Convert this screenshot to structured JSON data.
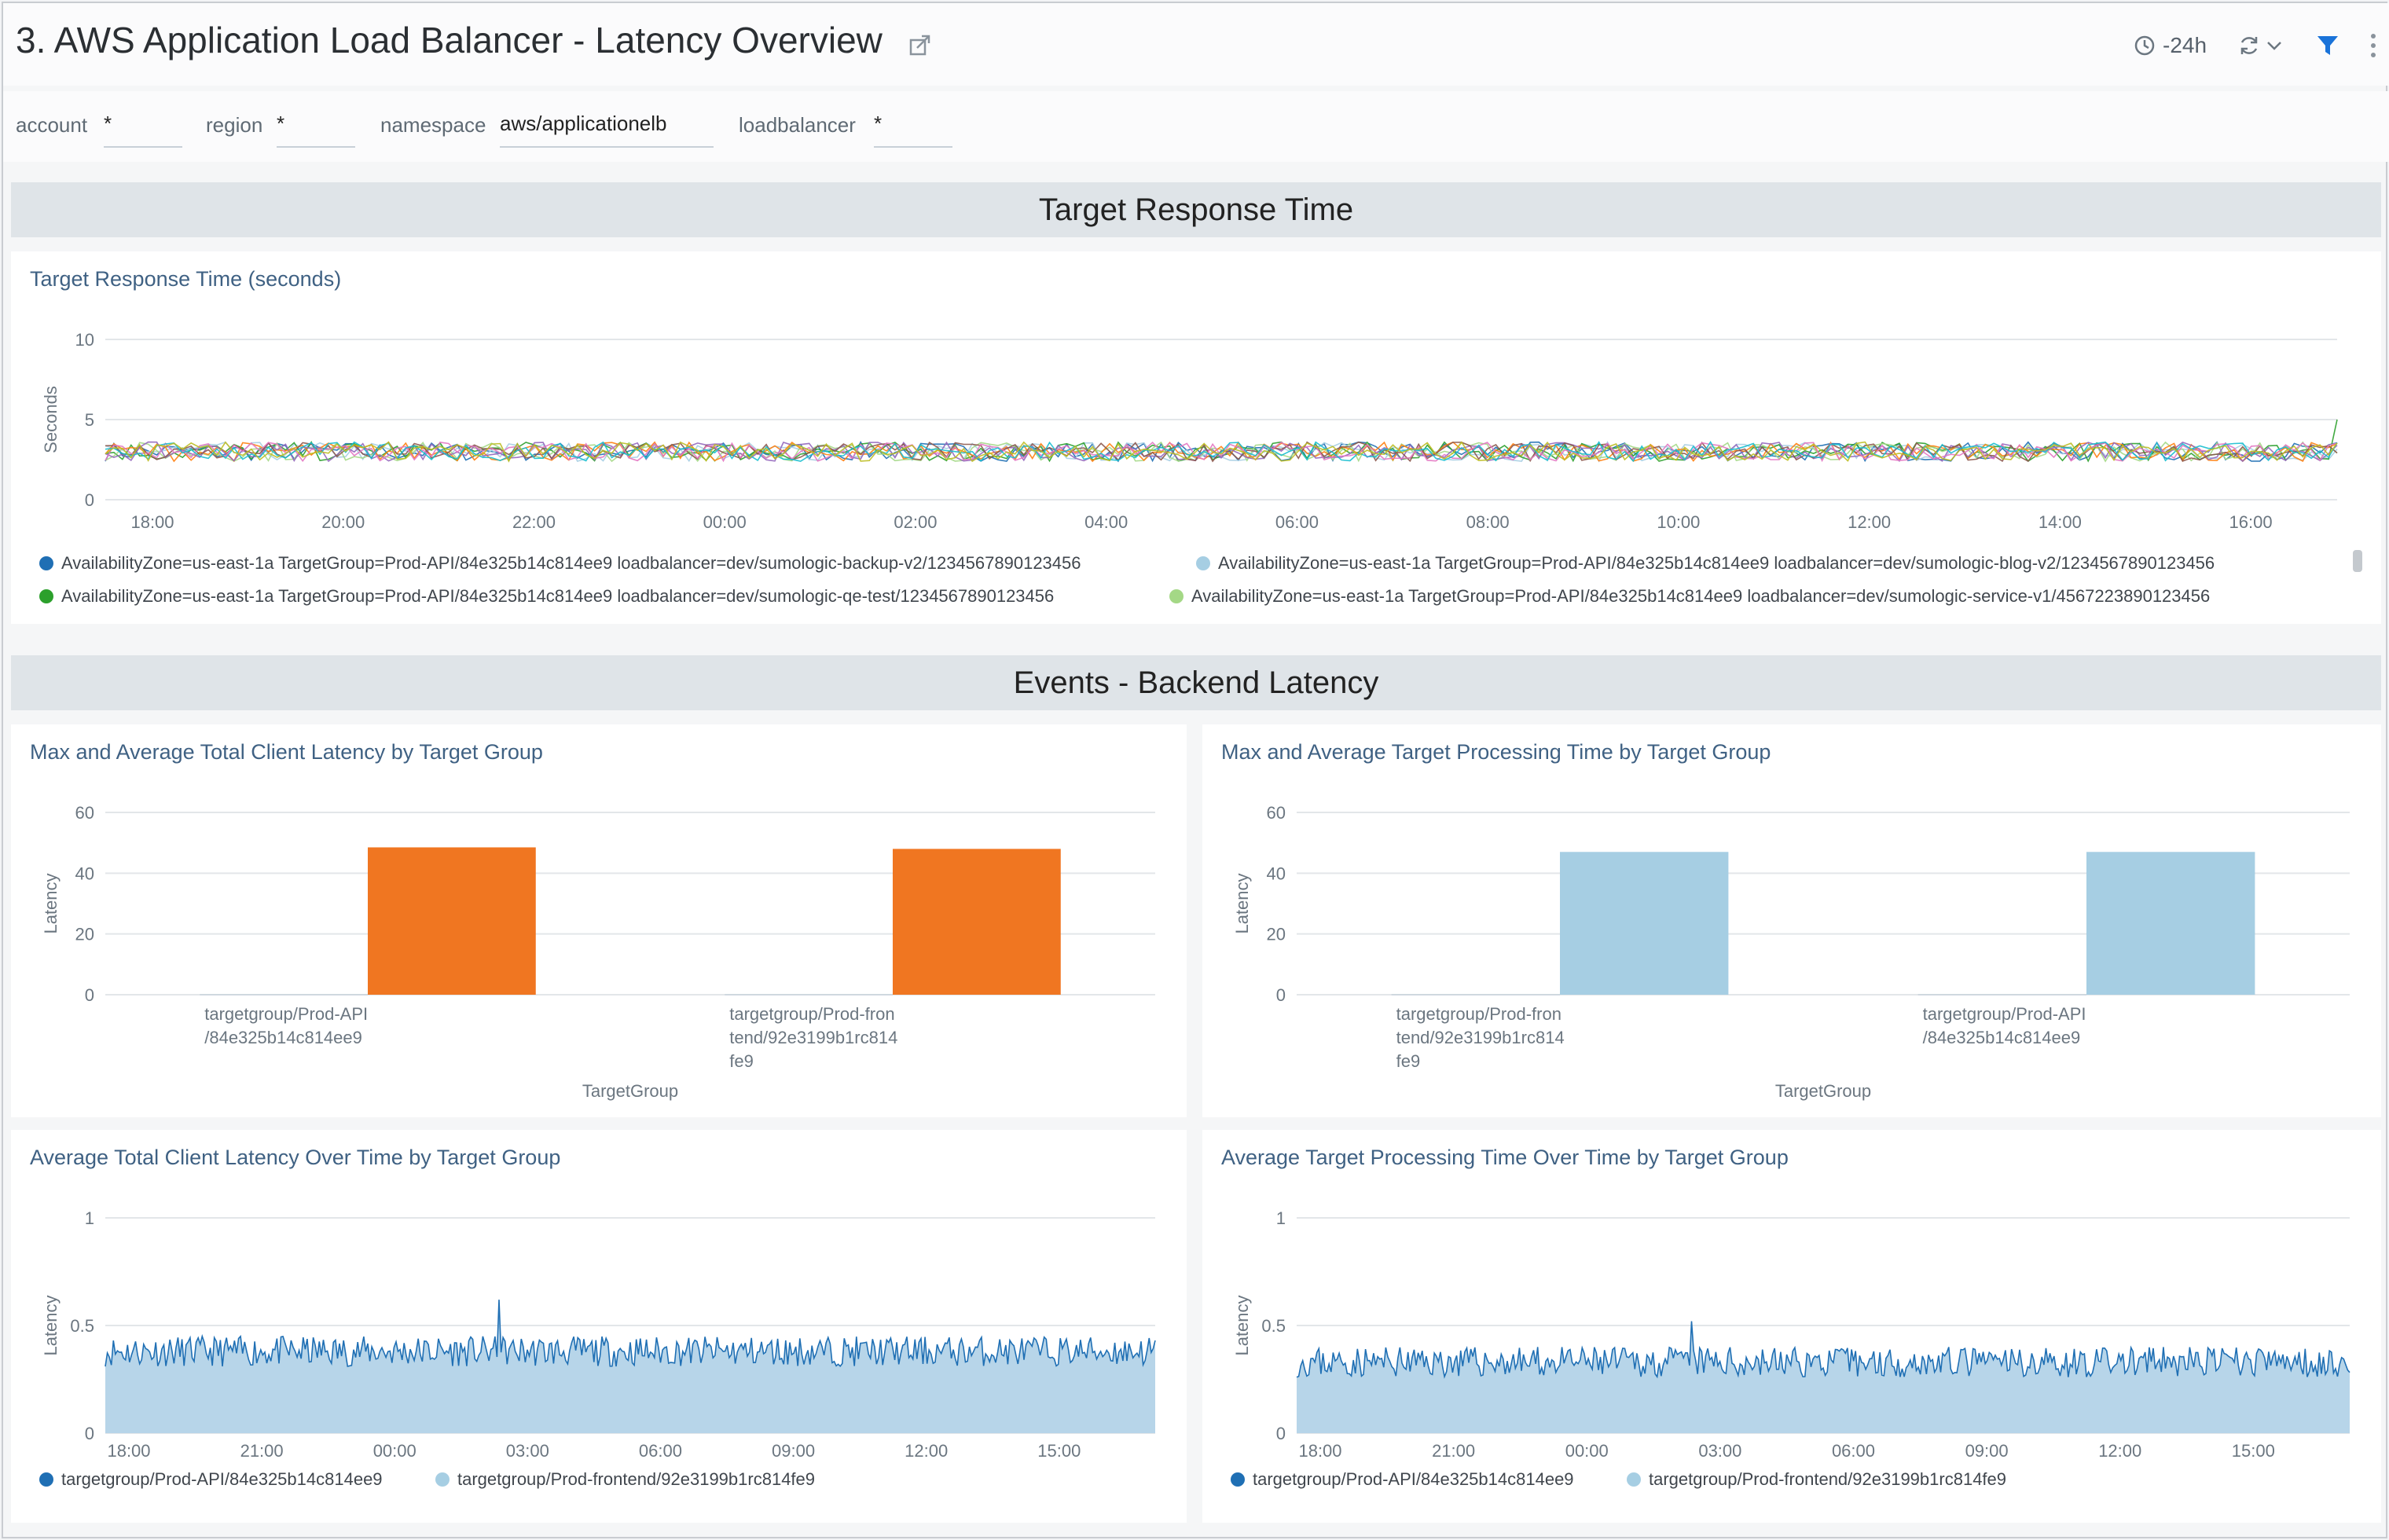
{
  "header": {
    "title": "3. AWS Application Load Balancer - Latency Overview",
    "time_range": "-24h"
  },
  "filters": [
    {
      "label": "account",
      "value": "*"
    },
    {
      "label": "region",
      "value": "*"
    },
    {
      "label": "namespace",
      "value": "aws/applicationelb"
    },
    {
      "label": "loadbalancer",
      "value": "*"
    }
  ],
  "sections": {
    "target_response": "Target Response Time",
    "backend_latency": "Events - Backend Latency"
  },
  "panels": {
    "trt": {
      "title": "Target Response Time (seconds)",
      "legend": [
        {
          "label": "AvailabilityZone=us-east-1a TargetGroup=Prod-API/84e325b14c814ee9 loadbalancer=dev/sumologic-backup-v2/1234567890123456",
          "color": "#1f6fb4"
        },
        {
          "label": "AvailabilityZone=us-east-1a TargetGroup=Prod-API/84e325b14c814ee9 loadbalancer=dev/sumologic-blog-v2/1234567890123456",
          "color": "#a6cee3"
        },
        {
          "label": "AvailabilityZone=us-east-1a TargetGroup=Prod-API/84e325b14c814ee9 loadbalancer=dev/sumologic-qe-test/1234567890123456",
          "color": "#2ca02c"
        },
        {
          "label": "AvailabilityZone=us-east-1a TargetGroup=Prod-API/84e325b14c814ee9 loadbalancer=dev/sumologic-service-v1/4567223890123456",
          "color": "#a4d886"
        }
      ]
    },
    "client_latency_bars": {
      "title": "Max and Average Total Client Latency by Target Group"
    },
    "processing_bars": {
      "title": "Max and Average Target Processing Time by Target Group"
    },
    "client_latency_time": {
      "title": "Average Total Client Latency Over Time by Target Group",
      "legend": [
        {
          "label": "targetgroup/Prod-API/84e325b14c814ee9",
          "color": "#1f6fb4"
        },
        {
          "label": "targetgroup/Prod-frontend/92e3199b1rc814fe9",
          "color": "#a6cee3"
        }
      ]
    },
    "processing_time": {
      "title": "Average Target Processing Time Over Time by Target Group",
      "legend": [
        {
          "label": "targetgroup/Prod-API/84e325b14c814ee9",
          "color": "#1f6fb4"
        },
        {
          "label": "targetgroup/Prod-frontend/92e3199b1rc814fe9",
          "color": "#a6cee3"
        }
      ]
    }
  },
  "chart_data": [
    {
      "id": "trt",
      "type": "line",
      "ylabel": "Seconds",
      "ylim": [
        0,
        10
      ],
      "yticks": [
        0,
        5,
        10
      ],
      "xticks": [
        "18:00",
        "20:00",
        "22:00",
        "00:00",
        "02:00",
        "04:00",
        "06:00",
        "08:00",
        "10:00",
        "12:00",
        "14:00",
        "16:00"
      ],
      "series_level": 3,
      "series_colors": [
        "#1f6fb4",
        "#a6cee3",
        "#2ca02c",
        "#a4d886",
        "#ff7f0e",
        "#9467bd",
        "#8c564b",
        "#e377c2",
        "#17becf",
        "#bcbd22"
      ]
    },
    {
      "id": "client_latency_bars",
      "type": "bar",
      "xlabel": "TargetGroup",
      "ylabel": "Latency",
      "ylim": [
        0,
        60
      ],
      "yticks": [
        0,
        20,
        40,
        60
      ],
      "categories": [
        {
          "lines": [
            "targetgroup/Prod-API",
            "/84e325b14c814ee9"
          ]
        },
        {
          "lines": [
            "targetgroup/Prod-fron",
            "tend/92e3199b1rc814",
            "fe9"
          ]
        }
      ],
      "series": [
        {
          "values": [
            0.2,
            0.2
          ],
          "color": "#c9d3dc"
        },
        {
          "values": [
            48.5,
            48
          ],
          "color": "#f07621"
        }
      ]
    },
    {
      "id": "processing_bars",
      "type": "bar",
      "xlabel": "TargetGroup",
      "ylabel": "Latency",
      "ylim": [
        0,
        60
      ],
      "yticks": [
        0,
        20,
        40,
        60
      ],
      "categories": [
        {
          "lines": [
            "targetgroup/Prod-fron",
            "tend/92e3199b1rc814",
            "fe9"
          ]
        },
        {
          "lines": [
            "targetgroup/Prod-API",
            "/84e325b14c814ee9"
          ]
        }
      ],
      "series": [
        {
          "values": [
            0.2,
            0.2
          ],
          "color": "#c9d3dc"
        },
        {
          "values": [
            47,
            47
          ],
          "color": "#a6cee3"
        }
      ]
    },
    {
      "id": "client_latency_time",
      "type": "area",
      "ylabel": "Latency",
      "ylim": [
        0,
        1
      ],
      "yticks": [
        0,
        0.5,
        1
      ],
      "xticks": [
        "18:00",
        "21:00",
        "00:00",
        "03:00",
        "06:00",
        "09:00",
        "12:00",
        "15:00"
      ],
      "base_level": 0.38,
      "peak": 0.62
    },
    {
      "id": "processing_time",
      "type": "area",
      "ylabel": "Latency",
      "ylim": [
        0,
        1
      ],
      "yticks": [
        0,
        0.5,
        1
      ],
      "xticks": [
        "18:00",
        "21:00",
        "00:00",
        "03:00",
        "06:00",
        "09:00",
        "12:00",
        "15:00"
      ],
      "base_level": 0.33,
      "peak": 0.52
    }
  ]
}
